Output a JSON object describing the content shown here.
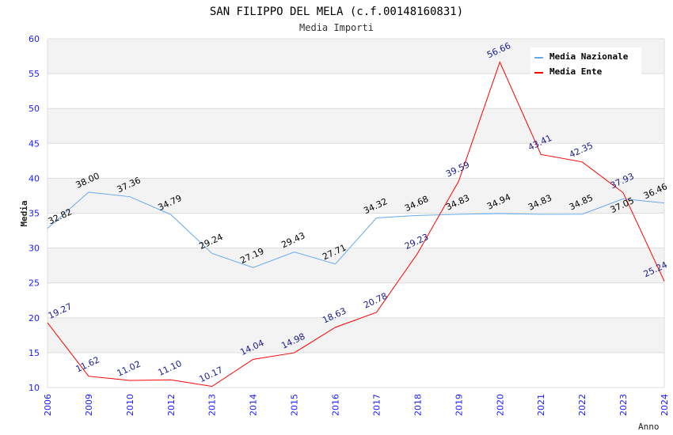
{
  "chart_data": {
    "type": "line",
    "title": "SAN FILIPPO DEL MELA (c.f.00148160831)",
    "subtitle": "Media Importi",
    "xlabel": "Anno",
    "ylabel": "Media",
    "ylim": [
      10,
      60
    ],
    "yticks": [
      "10",
      "15",
      "20",
      "25",
      "30",
      "35",
      "40",
      "45",
      "50",
      "55",
      "60"
    ],
    "categories": [
      "2006",
      "2009",
      "2010",
      "2012",
      "2013",
      "2014",
      "2015",
      "2016",
      "2017",
      "2018",
      "2019",
      "2020",
      "2021",
      "2022",
      "2023",
      "2024"
    ],
    "legend_position": "top-right",
    "series": [
      {
        "name": "Media Nazionale",
        "color": "#66aaee",
        "label_color": "#000000",
        "values": [
          32.82,
          38.0,
          37.36,
          34.79,
          29.24,
          27.19,
          29.43,
          27.71,
          34.32,
          34.68,
          34.83,
          34.94,
          34.83,
          34.85,
          37.05,
          36.46
        ],
        "labels": [
          "32.82",
          "38.00",
          "37.36",
          "34.79",
          "29.24",
          "27.19",
          "29.43",
          "27.71",
          "34.32",
          "34.68",
          "34.83",
          "34.94",
          "34.83",
          "34.85",
          "37.05",
          "36.46"
        ]
      },
      {
        "name": "Media Ente",
        "color": "#ff0000",
        "label_color": "#1a1a8c",
        "values": [
          19.27,
          11.62,
          11.02,
          11.1,
          10.17,
          14.04,
          14.98,
          18.63,
          20.78,
          29.23,
          39.59,
          56.66,
          43.41,
          42.35,
          37.93,
          25.24
        ],
        "labels": [
          "19.27",
          "11.62",
          "11.02",
          "11.10",
          "10.17",
          "14.04",
          "14.98",
          "18.63",
          "20.78",
          "29.23",
          "39.59",
          "56.66",
          "43.41",
          "42.35",
          "37.93",
          "25.24"
        ]
      }
    ]
  }
}
